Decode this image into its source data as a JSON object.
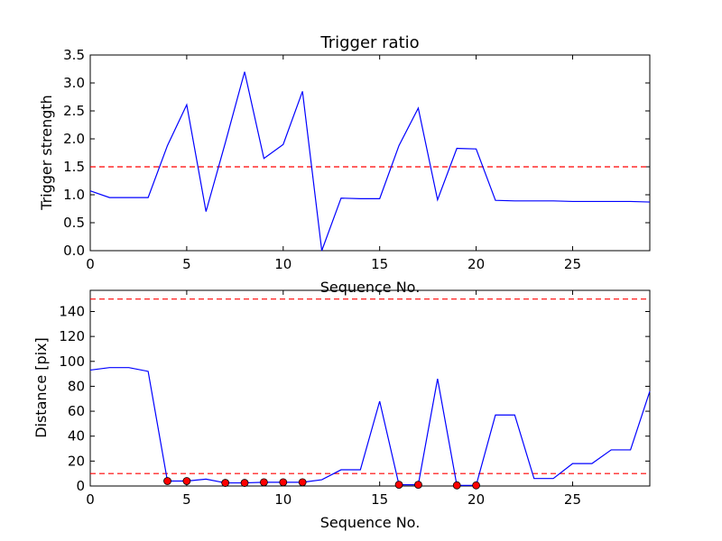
{
  "chart_data": [
    {
      "type": "line",
      "title": "Trigger ratio",
      "xlabel": "Sequence No.",
      "ylabel": "Trigger strength",
      "xlim": [
        0,
        29
      ],
      "ylim": [
        0,
        3.5
      ],
      "xticks": [
        "0",
        "5",
        "10",
        "15",
        "20",
        "25"
      ],
      "yticks": [
        "0.0",
        "0.5",
        "1.0",
        "1.5",
        "2.0",
        "2.5",
        "3.0",
        "3.5"
      ],
      "threshold_lines": [
        1.5
      ],
      "series": [
        {
          "color": "#0000ff",
          "x": [
            0,
            1,
            2,
            3,
            4,
            5,
            6,
            7,
            8,
            9,
            10,
            11,
            12,
            13,
            14,
            15,
            16,
            17,
            18,
            19,
            20,
            21,
            22,
            23,
            24,
            25,
            26,
            27,
            28,
            29
          ],
          "values": [
            1.07,
            0.95,
            0.95,
            0.95,
            1.88,
            2.61,
            0.7,
            1.93,
            3.2,
            1.65,
            1.9,
            2.85,
            0.0,
            0.94,
            0.93,
            0.93,
            1.88,
            2.55,
            0.91,
            1.83,
            1.82,
            0.9,
            0.89,
            0.89,
            0.89,
            0.88,
            0.88,
            0.88,
            0.88,
            0.87
          ]
        }
      ],
      "grid": false
    },
    {
      "type": "line",
      "title": "",
      "xlabel": "Sequence No.",
      "ylabel": "Distance [pix]",
      "xlim": [
        0,
        29
      ],
      "ylim": [
        0,
        157
      ],
      "xticks": [
        "0",
        "5",
        "10",
        "15",
        "20",
        "25"
      ],
      "yticks": [
        "0",
        "20",
        "40",
        "60",
        "80",
        "100",
        "120",
        "140"
      ],
      "threshold_lines": [
        150,
        10
      ],
      "series": [
        {
          "color": "#0000ff",
          "x": [
            0,
            1,
            2,
            3,
            4,
            5,
            6,
            7,
            8,
            9,
            10,
            11,
            12,
            13,
            14,
            15,
            16,
            17,
            18,
            19,
            20,
            21,
            22,
            23,
            24,
            25,
            26,
            27,
            28,
            29
          ],
          "values": [
            93,
            95,
            95,
            92,
            4,
            4,
            5.5,
            2.5,
            2.5,
            3,
            3,
            3,
            5,
            13,
            13,
            68,
            1,
            1,
            86,
            0.5,
            0.5,
            57,
            57,
            6,
            6,
            18,
            18,
            29,
            29,
            76
          ]
        }
      ],
      "markers": {
        "color": "#ff0000",
        "x": [
          4,
          5,
          7,
          8,
          9,
          10,
          11,
          16,
          17,
          19,
          20
        ],
        "values": [
          4,
          4,
          2.5,
          2.5,
          3,
          3,
          3,
          1,
          1,
          0.5,
          0.5
        ]
      },
      "grid": false
    }
  ]
}
